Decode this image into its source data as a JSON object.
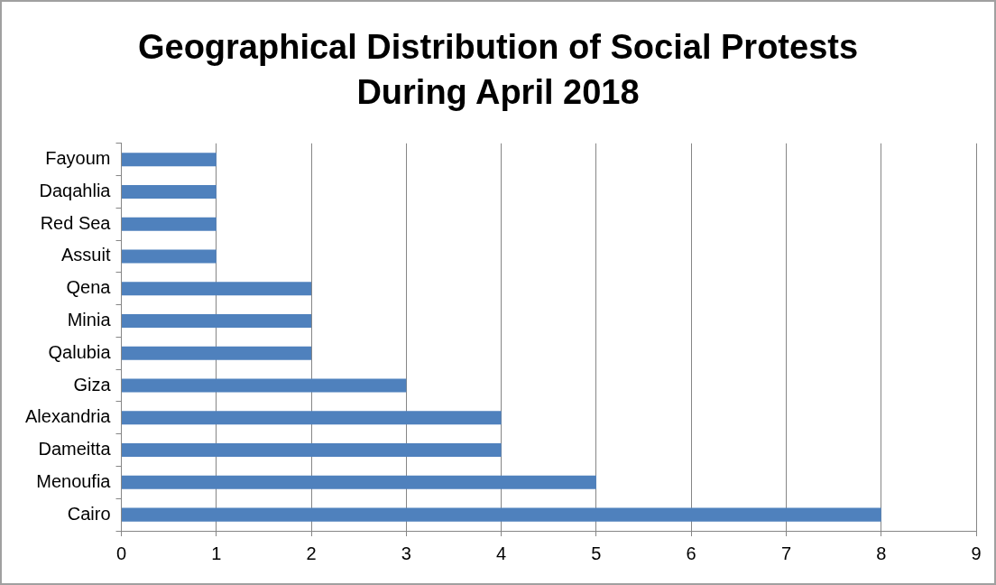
{
  "chart_data": {
    "type": "bar",
    "orientation": "horizontal",
    "title": "Geographical Distribution of Social Protests During April 2018",
    "categories": [
      "Fayoum",
      "Daqahlia",
      "Red Sea",
      "Assuit",
      "Qena",
      "Minia",
      "Qalubia",
      "Giza",
      "Alexandria",
      "Dameitta",
      "Menoufia",
      "Cairo"
    ],
    "values": [
      1,
      1,
      1,
      1,
      2,
      2,
      2,
      3,
      4,
      4,
      5,
      8
    ],
    "color": "#4f81bd",
    "xlim": [
      0,
      9
    ],
    "xticks": [
      0,
      1,
      2,
      3,
      4,
      5,
      6,
      7,
      8,
      9
    ],
    "grid": "x",
    "legend": false
  }
}
